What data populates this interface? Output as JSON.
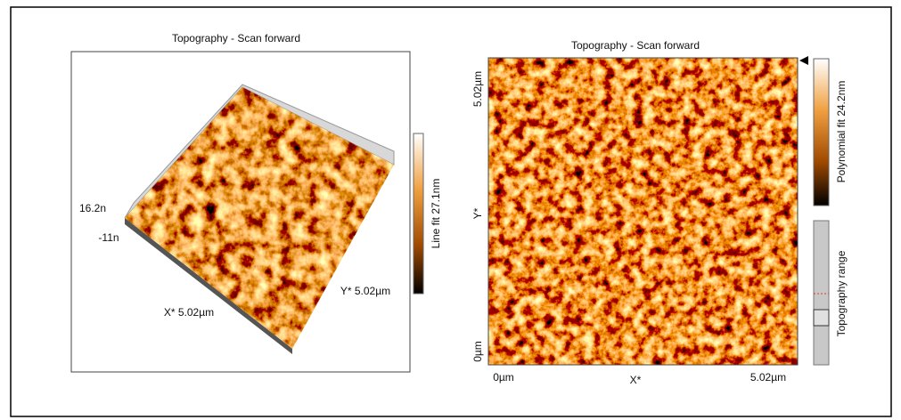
{
  "left_panel": {
    "title": "Topography - Scan forward",
    "z_max": "16.2n",
    "z_min": "-11n",
    "x_axis": "X* 5.02µm",
    "y_axis": "Y* 5.02µm",
    "colorbar_label": "Line fit 27.1nm"
  },
  "right_panel": {
    "title": "Topography - Scan forward",
    "y_max": "5.02µm",
    "y_label": "Y*",
    "y_min": "0µm",
    "x_min": "0µm",
    "x_label": "X*",
    "x_max": "5.02µm",
    "colorbar_label": "Polynomial fit 24.2nm",
    "range_label": "Topography range"
  }
}
